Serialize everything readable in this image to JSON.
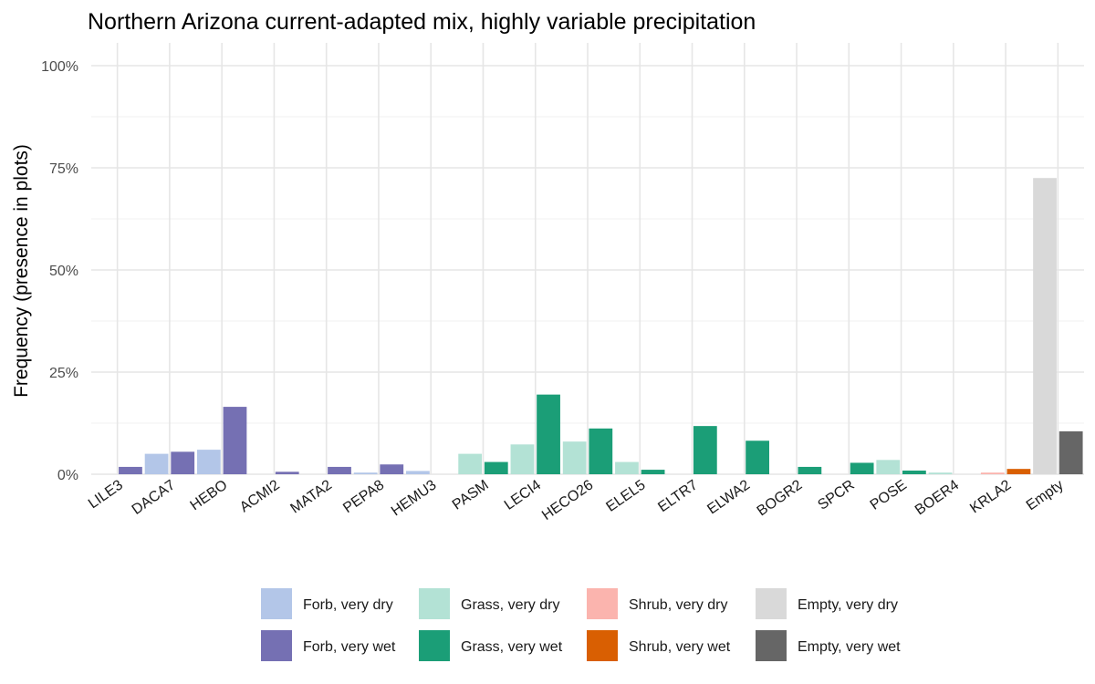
{
  "chart_data": {
    "type": "bar",
    "title": "Northern Arizona current-adapted mix, highly variable precipitation",
    "xlabel": "",
    "ylabel": "Frequency (presence in plots)",
    "ylim": [
      0,
      1
    ],
    "yticks": [
      0,
      0.25,
      0.5,
      0.75,
      1.0
    ],
    "ytick_labels": [
      "0%",
      "25%",
      "50%",
      "75%",
      "100%"
    ],
    "grid": true,
    "legend_position": "bottom",
    "categories": [
      "LILE3",
      "DACA7",
      "HEBO",
      "ACMI2",
      "MATA2",
      "PEPA8",
      "HEMU3",
      "PASM",
      "LECI4",
      "HECO26",
      "ELEL5",
      "ELTR7",
      "ELWA2",
      "BOGR2",
      "SPCR",
      "POSE",
      "BOER4",
      "KRLA2",
      "Empty"
    ],
    "series": [
      {
        "name": "Forb, very dry",
        "color": "#B3C6E8",
        "values": [
          0,
          0.05,
          0.06,
          0,
          0,
          0.004,
          0.008,
          0,
          0,
          0,
          0,
          0,
          0,
          0,
          0,
          0,
          0,
          0,
          0
        ]
      },
      {
        "name": "Forb, very wet",
        "color": "#7570B3",
        "values": [
          0.018,
          0.055,
          0.165,
          0.006,
          0.018,
          0.024,
          0,
          0,
          0,
          0,
          0,
          0,
          0,
          0,
          0,
          0,
          0,
          0,
          0
        ]
      },
      {
        "name": "Grass, very dry",
        "color": "#B3E2D5",
        "values": [
          0,
          0,
          0,
          0,
          0,
          0,
          0,
          0.05,
          0.073,
          0.08,
          0.03,
          0,
          0,
          0,
          0,
          0.035,
          0.004,
          0,
          0
        ]
      },
      {
        "name": "Grass, very wet",
        "color": "#1B9E77",
        "values": [
          0,
          0,
          0,
          0,
          0,
          0,
          0,
          0.03,
          0.195,
          0.112,
          0.011,
          0.118,
          0.082,
          0.018,
          0.028,
          0.009,
          0,
          0,
          0
        ]
      },
      {
        "name": "Shrub, very dry",
        "color": "#FBB4AE",
        "values": [
          0,
          0,
          0,
          0,
          0,
          0,
          0,
          0,
          0,
          0,
          0,
          0,
          0,
          0,
          0,
          0,
          0,
          0.004,
          0
        ]
      },
      {
        "name": "Shrub, very wet",
        "color": "#D95F02",
        "values": [
          0,
          0,
          0,
          0,
          0,
          0,
          0,
          0,
          0,
          0,
          0,
          0,
          0,
          0,
          0,
          0,
          0,
          0.013,
          0
        ]
      },
      {
        "name": "Empty, very dry",
        "color": "#D9D9D9",
        "values": [
          0,
          0,
          0,
          0,
          0,
          0,
          0,
          0,
          0,
          0,
          0,
          0,
          0,
          0,
          0,
          0,
          0,
          0,
          0.725
        ]
      },
      {
        "name": "Empty, very wet",
        "color": "#666666",
        "values": [
          0,
          0,
          0,
          0,
          0,
          0,
          0,
          0,
          0,
          0,
          0,
          0,
          0,
          0,
          0,
          0,
          0,
          0,
          0.105
        ]
      }
    ],
    "bar_pairs": [
      [
        "Forb, very dry",
        "Forb, very wet"
      ],
      [
        "Grass, very dry",
        "Grass, very wet"
      ],
      [
        "Shrub, very dry",
        "Shrub, very wet"
      ],
      [
        "Empty, very dry",
        "Empty, very wet"
      ]
    ]
  }
}
